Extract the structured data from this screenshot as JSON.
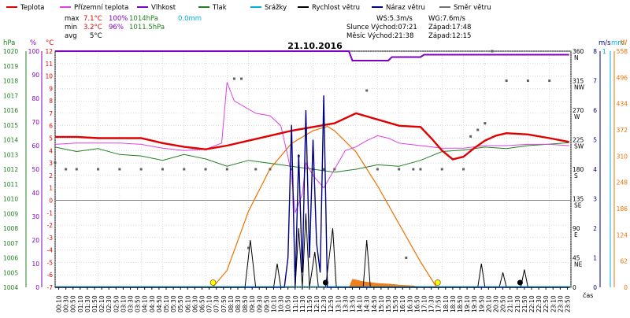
{
  "legend": [
    {
      "label": "Teplota",
      "color": "#e00000"
    },
    {
      "label": "Přízemní teplota",
      "color": "#e040e0"
    },
    {
      "label": "Vlhkost",
      "color": "#8000c0"
    },
    {
      "label": "Tlak",
      "color": "#208020"
    },
    {
      "label": "Srážky",
      "color": "#00b0e0"
    },
    {
      "label": "Rychlost větru",
      "color": "#000000"
    },
    {
      "label": "Náraz větru",
      "color": "#000080"
    },
    {
      "label": "Směr větru",
      "color": "#707070"
    }
  ],
  "stats": {
    "max": {
      "label": "max",
      "temp": "7.1°C",
      "hum": "100%",
      "press": "1014hPa",
      "rain": "0.0mm"
    },
    "min": {
      "label": "min",
      "temp": "3.2°C",
      "hum": "96%",
      "press": "1011.5hPa"
    },
    "avg": {
      "label": "avg",
      "temp": "5°C"
    }
  },
  "info": {
    "ws": "WS:5.3m/s",
    "wg": "WG:7.6m/s",
    "sun": "Slunce Východ:07:21",
    "sun_set": "Západ:17:48",
    "moon": "Měsíc Východ:21:38",
    "moon_set": "Západ:12:15"
  },
  "date": "21.10.2016",
  "axis_units": {
    "hpa": "hPa",
    "pct": "%",
    "c": "°C",
    "ms": "m/s",
    "mm": "mm",
    "w": "W"
  },
  "x_label": "čas",
  "colors": {
    "temp": "#e00000",
    "ground": "#e040e0",
    "hum": "#8000c0",
    "press": "#208020",
    "rain": "#00b0e0",
    "wind": "#000000",
    "gust": "#000080",
    "dir": "#606060",
    "solar": "#f07000",
    "sun": "#ffff00"
  },
  "chart_data": {
    "type": "line",
    "title": "21.10.2016",
    "x": [
      "00:10",
      "00:30",
      "00:50",
      "01:10",
      "01:30",
      "01:50",
      "02:10",
      "02:30",
      "02:50",
      "03:10",
      "03:30",
      "03:50",
      "04:10",
      "04:30",
      "04:50",
      "05:10",
      "05:30",
      "05:50",
      "06:10",
      "06:30",
      "06:50",
      "07:10",
      "07:30",
      "07:50",
      "08:10",
      "08:30",
      "08:50",
      "09:10",
      "09:30",
      "09:50",
      "10:10",
      "10:30",
      "10:50",
      "11:10",
      "11:30",
      "11:50",
      "12:10",
      "12:30",
      "12:50",
      "13:10",
      "13:30",
      "13:50",
      "14:10",
      "14:30",
      "14:50",
      "15:10",
      "15:30",
      "15:50",
      "16:10",
      "16:30",
      "16:50",
      "17:10",
      "17:30",
      "17:50",
      "18:10",
      "18:30",
      "18:50",
      "19:10",
      "19:30",
      "19:50",
      "20:10",
      "20:30",
      "20:50",
      "21:10",
      "21:30",
      "21:50",
      "22:10",
      "22:30",
      "22:50",
      "23:10",
      "23:30",
      "23:50"
    ],
    "axes": {
      "pressure_hpa": {
        "min": 1004,
        "max": 1020,
        "ticks": [
          1004,
          1005,
          1006,
          1007,
          1008,
          1009,
          1010,
          1011,
          1012,
          1013,
          1014,
          1015,
          1016,
          1017,
          1018,
          1019,
          1020
        ]
      },
      "humidity_pct": {
        "min": 0,
        "max": 100,
        "ticks": [
          0,
          10,
          20,
          30,
          40,
          50,
          60,
          70,
          80,
          90,
          100
        ]
      },
      "temperature_c": {
        "min": -7,
        "max": 12,
        "ticks": [
          -7,
          -6,
          -5,
          -4,
          -3,
          -2,
          -1,
          0,
          1,
          2,
          3,
          4,
          5,
          6,
          7,
          8,
          9,
          10,
          11,
          12
        ]
      },
      "wind_dir_deg": {
        "ticks": [
          {
            "deg": "360",
            "dir": "N"
          },
          {
            "deg": "315",
            "dir": "NW"
          },
          {
            "deg": "270",
            "dir": "W"
          },
          {
            "deg": "225",
            "dir": "SW"
          },
          {
            "deg": "180",
            "dir": "S"
          },
          {
            "deg": "135",
            "dir": "SE"
          },
          {
            "deg": "90",
            "dir": "E"
          },
          {
            "deg": "45",
            "dir": "NE"
          },
          {
            "deg": "0",
            "dir": ""
          }
        ]
      },
      "wind_ms": {
        "min": 0,
        "max": 8,
        "ticks": [
          0,
          1,
          2,
          3,
          4,
          5,
          6,
          7,
          8
        ]
      },
      "rain_mm": {
        "ticks": [
          1
        ]
      },
      "solar_w": {
        "min": 0,
        "max": 558,
        "ticks": [
          0,
          62,
          124,
          186,
          248,
          310,
          372,
          434,
          496,
          558
        ]
      }
    },
    "series": [
      {
        "name": "Teplota",
        "unit": "°C",
        "points": [
          [
            0,
            5.1
          ],
          [
            60,
            5.1
          ],
          [
            120,
            5.0
          ],
          [
            180,
            5.0
          ],
          [
            240,
            5.0
          ],
          [
            300,
            4.6
          ],
          [
            360,
            4.3
          ],
          [
            420,
            4.1
          ],
          [
            480,
            4.4
          ],
          [
            540,
            4.8
          ],
          [
            600,
            5.2
          ],
          [
            660,
            5.6
          ],
          [
            720,
            5.9
          ],
          [
            780,
            6.2
          ],
          [
            840,
            7.0
          ],
          [
            900,
            6.5
          ],
          [
            960,
            6.0
          ],
          [
            1020,
            5.9
          ],
          [
            1050,
            5.0
          ],
          [
            1080,
            4.0
          ],
          [
            1110,
            3.3
          ],
          [
            1140,
            3.5
          ],
          [
            1170,
            4.2
          ],
          [
            1200,
            4.8
          ],
          [
            1230,
            5.2
          ],
          [
            1260,
            5.4
          ],
          [
            1320,
            5.3
          ],
          [
            1380,
            5.0
          ],
          [
            1435,
            4.7
          ]
        ]
      },
      {
        "name": "Přízemní teplota",
        "unit": "°C",
        "points": [
          [
            0,
            4.5
          ],
          [
            60,
            4.6
          ],
          [
            120,
            4.6
          ],
          [
            180,
            4.6
          ],
          [
            240,
            4.5
          ],
          [
            300,
            4.2
          ],
          [
            360,
            4.0
          ],
          [
            420,
            4.1
          ],
          [
            465,
            4.6
          ],
          [
            480,
            9.5
          ],
          [
            500,
            8.0
          ],
          [
            560,
            7.0
          ],
          [
            600,
            6.8
          ],
          [
            630,
            6.0
          ],
          [
            650,
            3.5
          ],
          [
            660,
            2.0
          ],
          [
            670,
            -1.0
          ],
          [
            690,
            0.5
          ],
          [
            700,
            3.0
          ],
          [
            720,
            2.0
          ],
          [
            750,
            1.0
          ],
          [
            780,
            2.5
          ],
          [
            810,
            4.0
          ],
          [
            840,
            4.3
          ],
          [
            870,
            4.8
          ],
          [
            900,
            5.2
          ],
          [
            930,
            5.0
          ],
          [
            960,
            4.6
          ],
          [
            1020,
            4.4
          ],
          [
            1080,
            4.2
          ],
          [
            1140,
            4.2
          ],
          [
            1200,
            4.4
          ],
          [
            1260,
            4.4
          ],
          [
            1320,
            4.5
          ],
          [
            1380,
            4.5
          ],
          [
            1435,
            4.4
          ]
        ]
      },
      {
        "name": "Vlhkost",
        "unit": "%",
        "points": [
          [
            0,
            100
          ],
          [
            820,
            100
          ],
          [
            830,
            96
          ],
          [
            930,
            96
          ],
          [
            940,
            97.5
          ],
          [
            1020,
            97.5
          ],
          [
            1030,
            98.5
          ],
          [
            1435,
            98.5
          ]
        ]
      },
      {
        "name": "Tlak",
        "unit": "hPa",
        "points": [
          [
            0,
            1013.5
          ],
          [
            60,
            1013.2
          ],
          [
            120,
            1013.4
          ],
          [
            180,
            1013.0
          ],
          [
            240,
            1012.9
          ],
          [
            300,
            1012.6
          ],
          [
            360,
            1013.0
          ],
          [
            420,
            1012.7
          ],
          [
            480,
            1012.2
          ],
          [
            540,
            1012.6
          ],
          [
            600,
            1012.4
          ],
          [
            660,
            1012.2
          ],
          [
            720,
            1012.0
          ],
          [
            780,
            1011.8
          ],
          [
            840,
            1012.0
          ],
          [
            900,
            1012.3
          ],
          [
            960,
            1012.2
          ],
          [
            1020,
            1012.6
          ],
          [
            1080,
            1013.2
          ],
          [
            1140,
            1013.3
          ],
          [
            1200,
            1013.5
          ],
          [
            1260,
            1013.4
          ],
          [
            1320,
            1013.6
          ],
          [
            1380,
            1013.7
          ],
          [
            1435,
            1013.8
          ]
        ]
      },
      {
        "name": "Rychlost větru",
        "unit": "m/s",
        "points": [
          [
            0,
            0
          ],
          [
            530,
            0
          ],
          [
            545,
            1.6
          ],
          [
            560,
            0
          ],
          [
            610,
            0
          ],
          [
            620,
            0.8
          ],
          [
            630,
            0
          ],
          [
            670,
            0
          ],
          [
            680,
            2.0
          ],
          [
            690,
            0
          ],
          [
            700,
            2.5
          ],
          [
            710,
            0
          ],
          [
            725,
            1.2
          ],
          [
            735,
            0
          ],
          [
            755,
            0
          ],
          [
            775,
            2.0
          ],
          [
            785,
            0
          ],
          [
            860,
            0
          ],
          [
            870,
            1.6
          ],
          [
            880,
            0
          ],
          [
            1180,
            0
          ],
          [
            1190,
            0.8
          ],
          [
            1200,
            0
          ],
          [
            1240,
            0
          ],
          [
            1250,
            0.5
          ],
          [
            1260,
            0
          ],
          [
            1300,
            0
          ],
          [
            1310,
            0.6
          ],
          [
            1320,
            0
          ],
          [
            1435,
            0
          ]
        ]
      },
      {
        "name": "Náraz větru",
        "unit": "m/s",
        "points": [
          [
            0,
            0
          ],
          [
            640,
            0
          ],
          [
            650,
            1.0
          ],
          [
            660,
            5.5
          ],
          [
            670,
            0
          ],
          [
            680,
            4.5
          ],
          [
            690,
            0.5
          ],
          [
            700,
            6.0
          ],
          [
            710,
            1.0
          ],
          [
            720,
            5.0
          ],
          [
            730,
            1.5
          ],
          [
            740,
            0.5
          ],
          [
            750,
            6.5
          ],
          [
            760,
            0
          ],
          [
            800,
            0
          ],
          [
            1435,
            0
          ]
        ]
      },
      {
        "name": "Směr větru",
        "unit": "°",
        "points": [
          [
            0,
            190
          ],
          [
            30,
            180
          ],
          [
            60,
            180
          ],
          [
            120,
            180
          ],
          [
            180,
            180
          ],
          [
            240,
            180
          ],
          [
            300,
            180
          ],
          [
            360,
            180
          ],
          [
            420,
            180
          ],
          [
            480,
            180
          ],
          [
            500,
            318
          ],
          [
            520,
            318
          ],
          [
            540,
            60
          ],
          [
            560,
            180
          ],
          [
            600,
            180
          ],
          [
            660,
            180
          ],
          [
            680,
            200
          ],
          [
            700,
            240
          ],
          [
            720,
            180
          ],
          [
            750,
            180
          ],
          [
            780,
            180
          ],
          [
            870,
            300
          ],
          [
            900,
            180
          ],
          [
            960,
            180
          ],
          [
            980,
            45
          ],
          [
            1000,
            180
          ],
          [
            1020,
            180
          ],
          [
            1080,
            180
          ],
          [
            1140,
            180
          ],
          [
            1160,
            230
          ],
          [
            1180,
            240
          ],
          [
            1200,
            250
          ],
          [
            1220,
            360
          ],
          [
            1260,
            315
          ],
          [
            1320,
            315
          ],
          [
            1380,
            315
          ]
        ]
      },
      {
        "name": "Srážky",
        "unit": "mm",
        "points": [
          [
            0,
            0
          ],
          [
            1435,
            0
          ]
        ]
      },
      {
        "name": "Sluneční záření",
        "unit": "W",
        "points": [
          [
            440,
            0
          ],
          [
            480,
            40
          ],
          [
            540,
            180
          ],
          [
            600,
            280
          ],
          [
            660,
            340
          ],
          [
            720,
            370
          ],
          [
            760,
            380
          ],
          [
            780,
            370
          ],
          [
            840,
            320
          ],
          [
            900,
            240
          ],
          [
            960,
            150
          ],
          [
            1020,
            60
          ],
          [
            1065,
            0
          ]
        ]
      }
    ],
    "sun_markers": {
      "sunrise": "07:21",
      "sunset": "17:48"
    }
  }
}
